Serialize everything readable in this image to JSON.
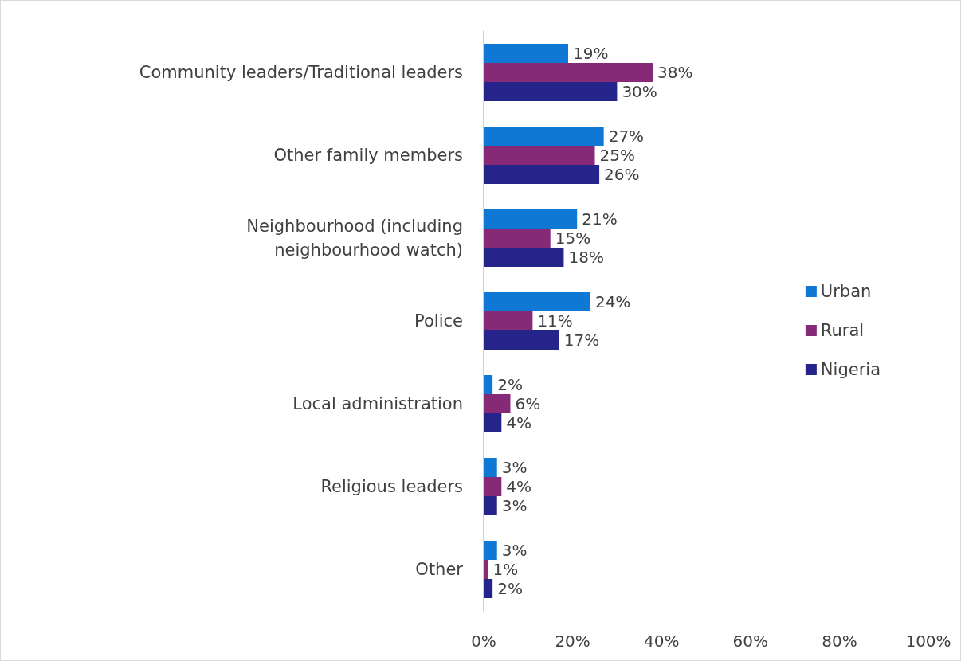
{
  "chart_data": {
    "type": "bar",
    "orientation": "horizontal",
    "categories": [
      "Community leaders/Traditional leaders",
      "Other family members",
      "Neighbourhood (including\nneighbourhood watch)",
      "Police",
      "Local administration",
      "Religious leaders",
      "Other"
    ],
    "series": [
      {
        "name": "Urban",
        "color": "#0f78d4",
        "values": [
          19,
          27,
          21,
          24,
          2,
          3,
          3
        ],
        "value_labels": [
          "19%",
          "27%",
          "21%",
          "24%",
          "2%",
          "3%",
          "3%"
        ]
      },
      {
        "name": "Rural",
        "color": "#862a78",
        "values": [
          38,
          25,
          15,
          11,
          6,
          4,
          1
        ],
        "value_labels": [
          "38%",
          "25%",
          "15%",
          "11%",
          "6%",
          "4%",
          "1%"
        ]
      },
      {
        "name": "Nigeria",
        "color": "#24248a",
        "values": [
          30,
          26,
          18,
          17,
          4,
          3,
          2
        ],
        "value_labels": [
          "30%",
          "26%",
          "18%",
          "17%",
          "4%",
          "3%",
          "2%"
        ]
      }
    ],
    "xlim": [
      0,
      100
    ],
    "xticks": [
      {
        "value": 0,
        "label": "0%"
      },
      {
        "value": 20,
        "label": "20%"
      },
      {
        "value": 40,
        "label": "40%"
      },
      {
        "value": 60,
        "label": "60%"
      },
      {
        "value": 80,
        "label": "80%"
      },
      {
        "value": 100,
        "label": "100%"
      }
    ],
    "grid": false,
    "legend": "right"
  }
}
